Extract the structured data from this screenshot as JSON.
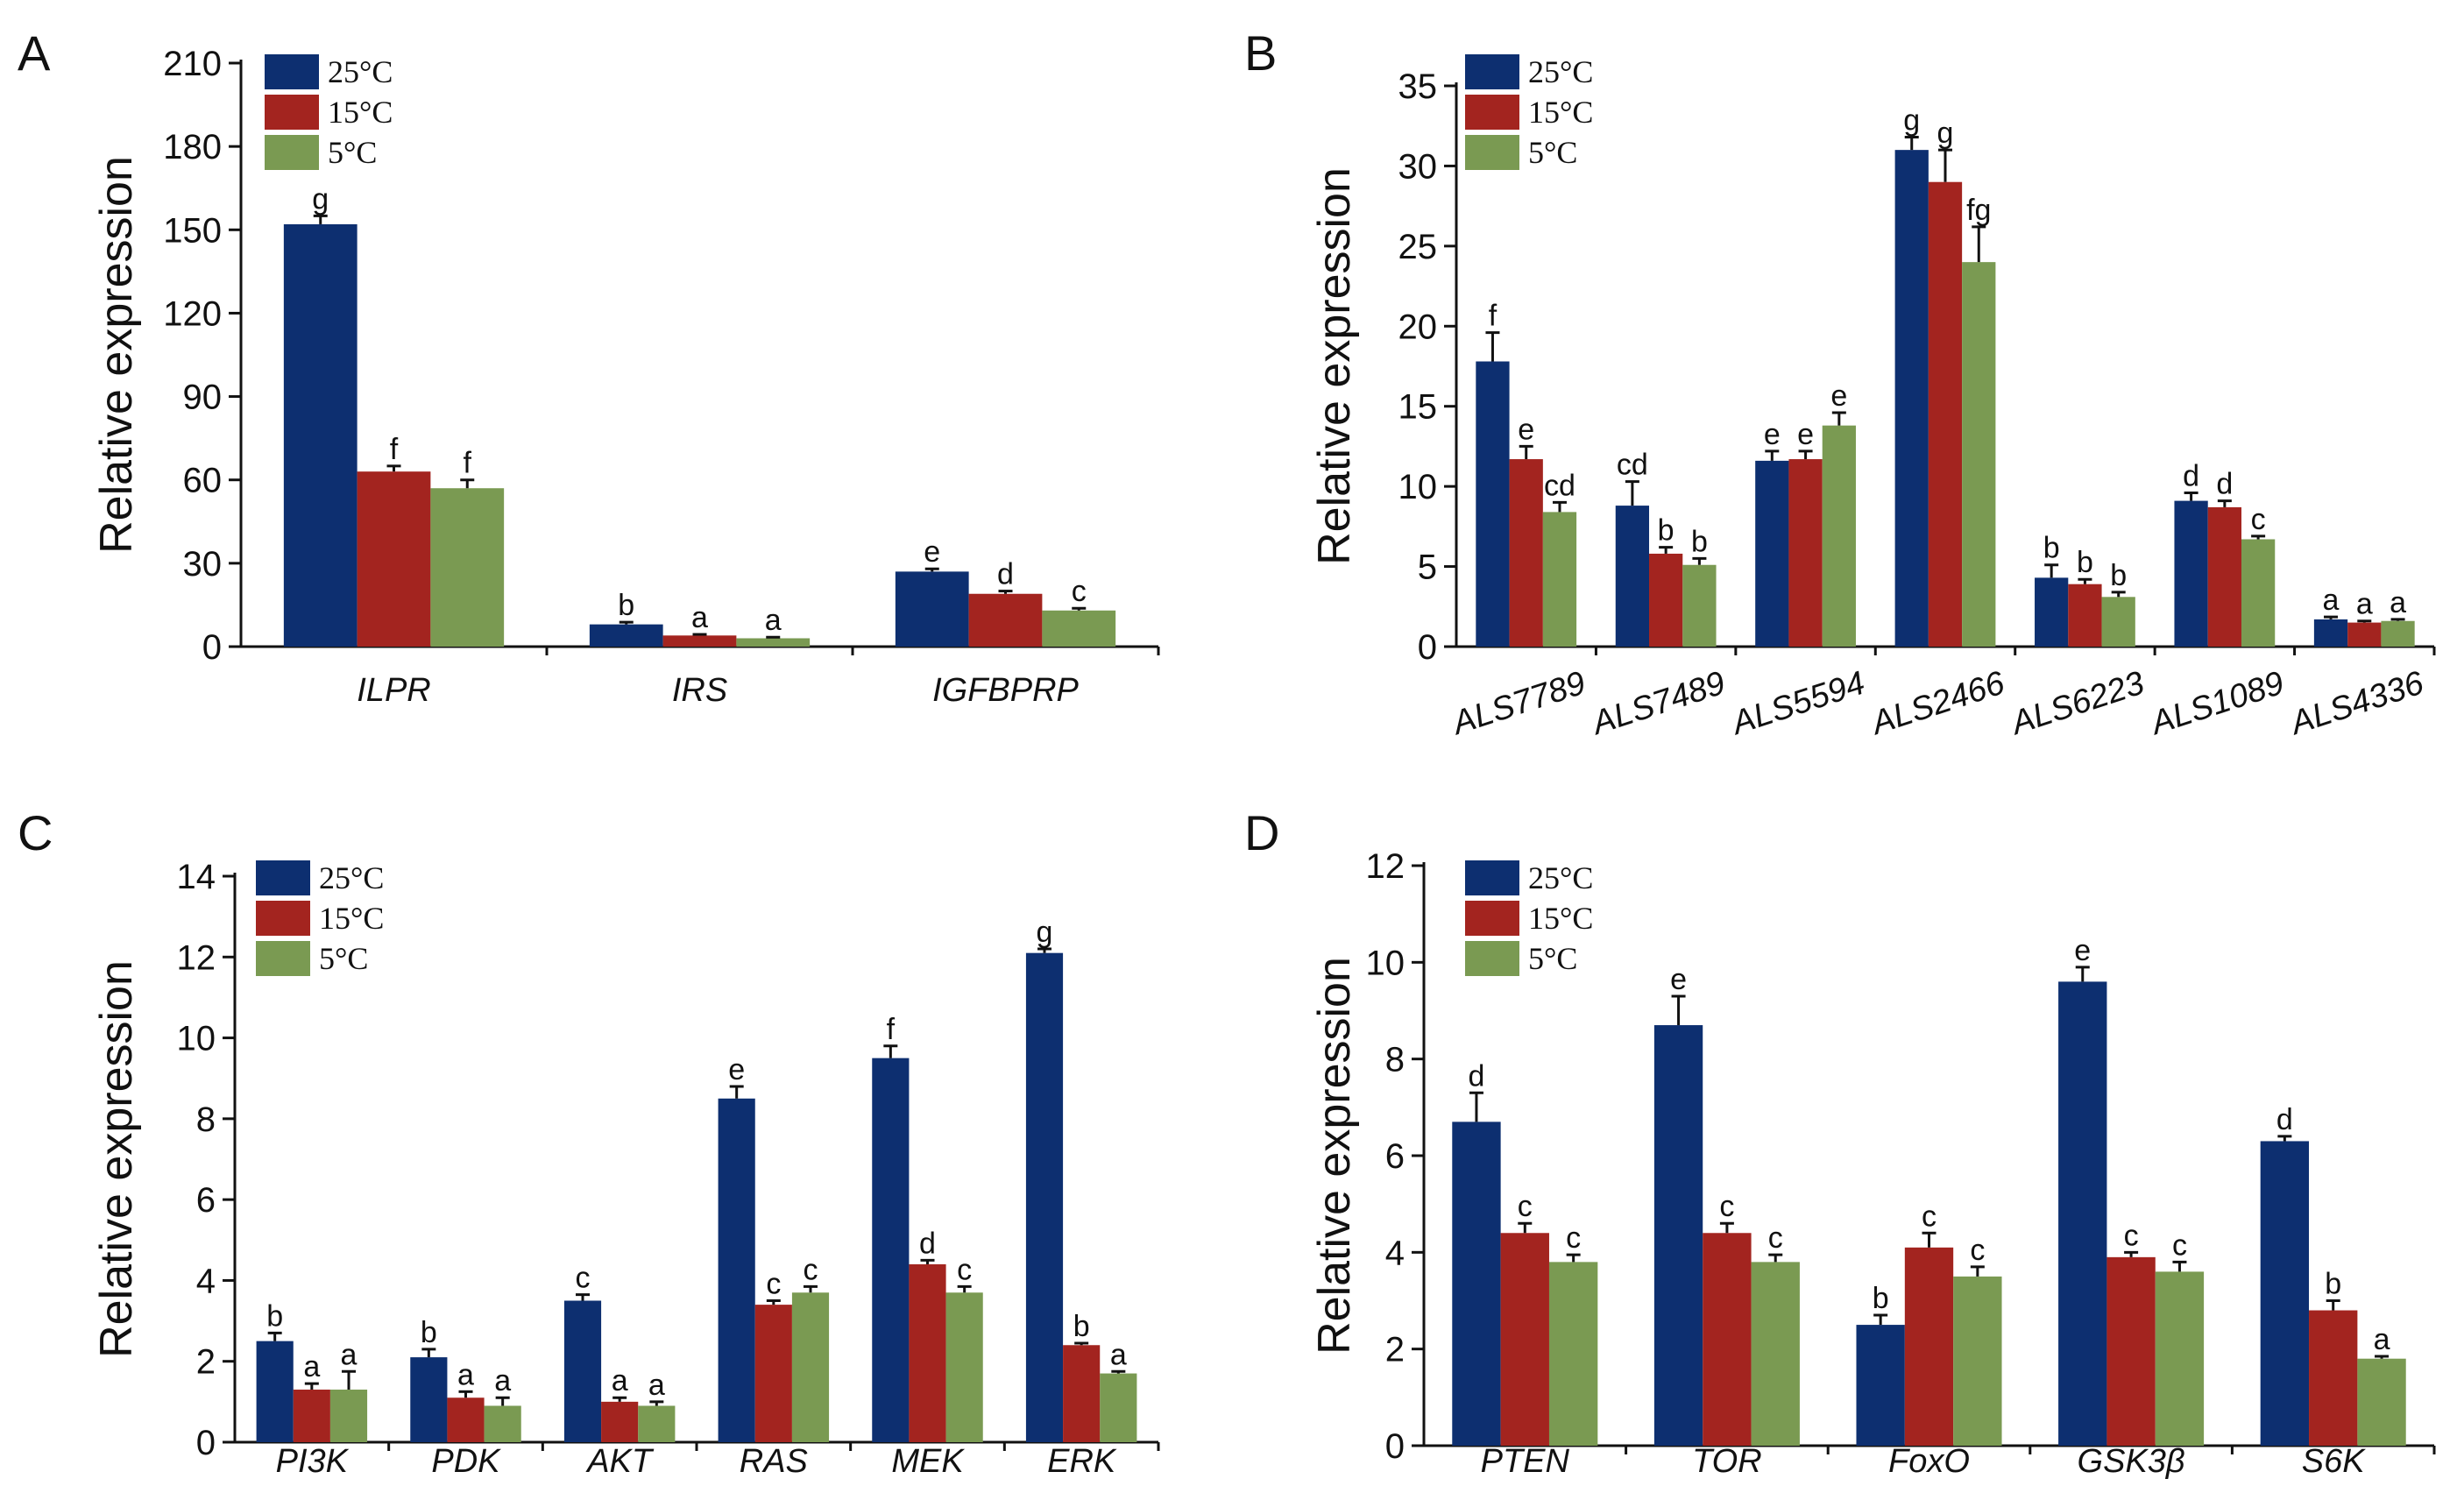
{
  "legend": [
    "25°C",
    "15°C",
    "5°C"
  ],
  "colors": [
    "#0d2f70",
    "#a3241f",
    "#7a9a52"
  ],
  "chart_data": [
    {
      "panel": "A",
      "type": "bar",
      "ylabel": "Relative expression",
      "ylim": [
        0,
        210
      ],
      "yticks": [
        0,
        30,
        60,
        90,
        120,
        150,
        180,
        210
      ],
      "categories": [
        "ILPR",
        "IRS",
        "IGFBPRP"
      ],
      "series": [
        {
          "name": "25°C",
          "values": [
            152,
            8,
            27
          ],
          "errors": [
            3,
            0.8,
            1
          ],
          "labels": [
            "g",
            "b",
            "e"
          ]
        },
        {
          "name": "15°C",
          "values": [
            63,
            4,
            19
          ],
          "errors": [
            2,
            0.4,
            1
          ],
          "labels": [
            "f",
            "a",
            "d"
          ]
        },
        {
          "name": "5°C",
          "values": [
            57,
            3,
            13
          ],
          "errors": [
            3,
            0.4,
            0.8
          ],
          "labels": [
            "f",
            "a",
            "c"
          ]
        }
      ]
    },
    {
      "panel": "B",
      "type": "bar",
      "ylabel": "Relative expression",
      "ylim": [
        0,
        35
      ],
      "yticks": [
        0,
        5,
        10,
        15,
        20,
        25,
        30,
        35
      ],
      "categories": [
        "ALS7789",
        "ALS7489",
        "ALS5594",
        "ALS2466",
        "ALS6223",
        "ALS1089",
        "ALS4336"
      ],
      "series": [
        {
          "name": "25°C",
          "values": [
            17.8,
            8.8,
            11.6,
            31,
            4.3,
            9.1,
            1.7
          ],
          "errors": [
            1.8,
            1.5,
            0.6,
            0.8,
            0.8,
            0.5,
            0.15
          ],
          "labels": [
            "f",
            "cd",
            "e",
            "g",
            "b",
            "d",
            "a"
          ]
        },
        {
          "name": "15°C",
          "values": [
            11.7,
            5.8,
            11.7,
            29,
            3.9,
            8.7,
            1.5
          ],
          "errors": [
            0.8,
            0.4,
            0.5,
            2,
            0.3,
            0.4,
            0.1
          ],
          "labels": [
            "e",
            "b",
            "e",
            "g",
            "b",
            "d",
            "a"
          ]
        },
        {
          "name": "5°C",
          "values": [
            8.4,
            5.1,
            13.8,
            24,
            3.1,
            6.7,
            1.6
          ],
          "errors": [
            0.6,
            0.4,
            0.8,
            2.2,
            0.3,
            0.2,
            0.1
          ],
          "labels": [
            "cd",
            "b",
            "e",
            "fg",
            "b",
            "c",
            "a"
          ]
        }
      ]
    },
    {
      "panel": "C",
      "type": "bar",
      "ylabel": "Relative expression",
      "ylim": [
        0,
        14
      ],
      "yticks": [
        0,
        2,
        4,
        6,
        8,
        10,
        12,
        14
      ],
      "categories": [
        "PI3K",
        "PDK",
        "AKT",
        "RAS",
        "MEK",
        "ERK"
      ],
      "series": [
        {
          "name": "25°C",
          "values": [
            2.5,
            2.1,
            3.5,
            8.5,
            9.5,
            12.1
          ],
          "errors": [
            0.2,
            0.2,
            0.15,
            0.3,
            0.3,
            0.1
          ],
          "labels": [
            "b",
            "b",
            "c",
            "e",
            "f",
            "g"
          ]
        },
        {
          "name": "15°C",
          "values": [
            1.3,
            1.1,
            1.0,
            3.4,
            4.4,
            2.4
          ],
          "errors": [
            0.15,
            0.15,
            0.1,
            0.1,
            0.1,
            0.05
          ],
          "labels": [
            "a",
            "a",
            "a",
            "c",
            "d",
            "b"
          ]
        },
        {
          "name": "5°C",
          "values": [
            1.3,
            0.9,
            0.9,
            3.7,
            3.7,
            1.7
          ],
          "errors": [
            0.45,
            0.2,
            0.1,
            0.15,
            0.15,
            0.05
          ],
          "labels": [
            "a",
            "a",
            "a",
            "c",
            "c",
            "a"
          ]
        }
      ]
    },
    {
      "panel": "D",
      "type": "bar",
      "ylabel": "Relative expression",
      "ylim": [
        0,
        12
      ],
      "yticks": [
        0,
        2,
        4,
        6,
        8,
        10,
        12
      ],
      "categories": [
        "PTEN",
        "TOR",
        "FoxO",
        "GSK3β",
        "S6K"
      ],
      "series": [
        {
          "name": "25°C",
          "values": [
            6.7,
            8.7,
            2.5,
            9.6,
            6.3
          ],
          "errors": [
            0.6,
            0.6,
            0.2,
            0.3,
            0.1
          ],
          "labels": [
            "d",
            "e",
            "b",
            "e",
            "d"
          ]
        },
        {
          "name": "15°C",
          "values": [
            4.4,
            4.4,
            4.1,
            3.9,
            2.8
          ],
          "errors": [
            0.2,
            0.2,
            0.3,
            0.1,
            0.2
          ],
          "labels": [
            "c",
            "c",
            "c",
            "c",
            "b"
          ]
        },
        {
          "name": "5°C",
          "values": [
            3.8,
            3.8,
            3.5,
            3.6,
            1.8
          ],
          "errors": [
            0.15,
            0.15,
            0.2,
            0.2,
            0.05
          ],
          "labels": [
            "c",
            "c",
            "c",
            "c",
            "a"
          ]
        }
      ]
    }
  ]
}
